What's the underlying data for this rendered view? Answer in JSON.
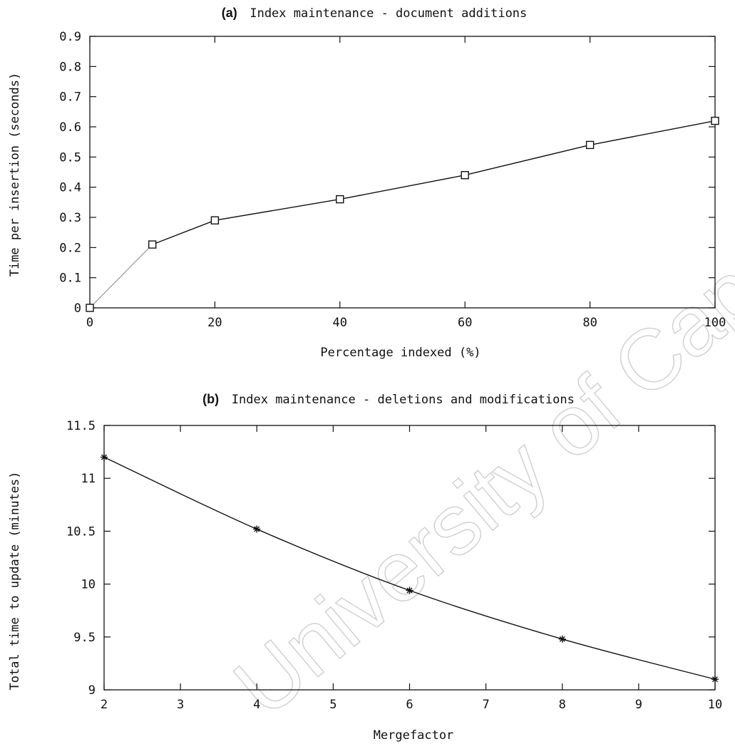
{
  "chart_data": [
    {
      "type": "line",
      "panel": "(a)",
      "title": "Index maintenance - document additions",
      "xlabel": "Percentage indexed (%)",
      "ylabel": "Time per insertion (seconds)",
      "xlim": [
        0,
        100
      ],
      "ylim": [
        0,
        0.9
      ],
      "xticks": [
        "0",
        "20",
        "40",
        "60",
        "80",
        "100"
      ],
      "xtick_values": [
        0,
        20,
        40,
        60,
        80,
        100
      ],
      "yticks": [
        "0",
        "0.1",
        "0.2",
        "0.3",
        "0.4",
        "0.5",
        "0.6",
        "0.7",
        "0.8",
        "0.9"
      ],
      "ytick_values": [
        0,
        0.1,
        0.2,
        0.3,
        0.4,
        0.5,
        0.6,
        0.7,
        0.8,
        0.9
      ],
      "marker": "square",
      "grid": false,
      "series": [
        {
          "x": [
            0,
            10,
            20,
            40,
            60,
            80,
            100
          ],
          "y": [
            0,
            0.21,
            0.29,
            0.36,
            0.44,
            0.54,
            0.62
          ]
        }
      ]
    },
    {
      "type": "line",
      "panel": "(b)",
      "title": "Index maintenance - deletions and modifications",
      "xlabel": "Mergefactor",
      "ylabel": "Total time to update (minutes)",
      "xlim": [
        2,
        10
      ],
      "ylim": [
        9,
        11.5
      ],
      "xticks": [
        "2",
        "3",
        "4",
        "5",
        "6",
        "7",
        "8",
        "9",
        "10"
      ],
      "xtick_values": [
        2,
        3,
        4,
        5,
        6,
        7,
        8,
        9,
        10
      ],
      "yticks": [
        "9",
        "9.5",
        "10",
        "10.5",
        "11",
        "11.5"
      ],
      "ytick_values": [
        9,
        9.5,
        10,
        10.5,
        11,
        11.5
      ],
      "marker": "star",
      "grid": false,
      "series": [
        {
          "x": [
            2,
            4,
            6,
            8,
            10
          ],
          "y": [
            11.2,
            10.52,
            9.94,
            9.48,
            9.1
          ]
        }
      ]
    }
  ],
  "watermark": "University of Cape Town"
}
